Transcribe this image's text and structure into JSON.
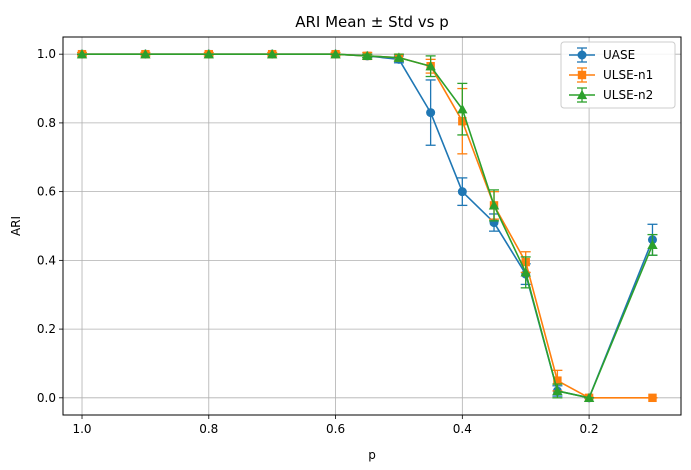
{
  "chart_data": {
    "type": "line",
    "title": "ARI Mean ± Std vs p",
    "xlabel": "p",
    "ylabel": "ARI",
    "x_reversed": true,
    "xlim": [
      1.03,
      0.055
    ],
    "ylim": [
      -0.05,
      1.05
    ],
    "xticks": [
      1.0,
      0.8,
      0.6,
      0.4,
      0.2
    ],
    "xtick_labels": [
      "1.0",
      "0.8",
      "0.6",
      "0.4",
      "0.2"
    ],
    "yticks": [
      0.0,
      0.2,
      0.4,
      0.6,
      0.8,
      1.0
    ],
    "ytick_labels": [
      "0.0",
      "0.2",
      "0.4",
      "0.6",
      "0.8",
      "1.0"
    ],
    "grid": true,
    "legend_position": "top-right",
    "x": [
      1.0,
      0.9,
      0.8,
      0.7,
      0.6,
      0.55,
      0.5,
      0.45,
      0.4,
      0.35,
      0.3,
      0.25,
      0.2,
      0.1
    ],
    "series": [
      {
        "name": "UASE",
        "color": "#1f77b4",
        "marker": "circle",
        "values": [
          1.0,
          1.0,
          1.0,
          1.0,
          1.0,
          0.995,
          0.985,
          0.83,
          0.6,
          0.51,
          0.36,
          0.02,
          0.0,
          0.46
        ],
        "std": [
          0.0,
          0.0,
          0.0,
          0.0,
          0.0,
          0.005,
          0.01,
          0.095,
          0.04,
          0.025,
          0.03,
          0.015,
          0.0,
          0.045
        ]
      },
      {
        "name": "ULSE-n1",
        "color": "#ff7f0e",
        "marker": "square",
        "values": [
          1.0,
          1.0,
          1.0,
          1.0,
          1.0,
          0.995,
          0.99,
          0.965,
          0.805,
          0.56,
          0.395,
          0.05,
          0.0,
          0.0
        ],
        "std": [
          0.005,
          0.005,
          0.005,
          0.005,
          0.005,
          0.01,
          0.01,
          0.02,
          0.095,
          0.04,
          0.03,
          0.03,
          0.0,
          0.0
        ]
      },
      {
        "name": "ULSE-n2",
        "color": "#2ca02c",
        "marker": "triangle",
        "values": [
          1.0,
          1.0,
          1.0,
          1.0,
          1.0,
          0.995,
          0.99,
          0.965,
          0.84,
          0.56,
          0.365,
          0.02,
          0.0,
          0.445
        ],
        "std": [
          0.0,
          0.0,
          0.0,
          0.0,
          0.0,
          0.005,
          0.01,
          0.03,
          0.075,
          0.045,
          0.045,
          0.02,
          0.0,
          0.03
        ]
      }
    ]
  }
}
